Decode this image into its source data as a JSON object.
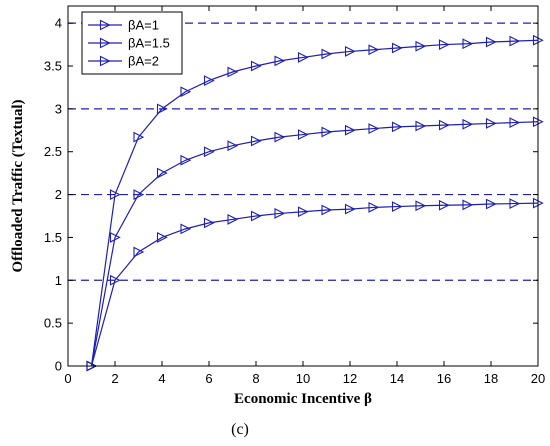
{
  "chart_data": {
    "type": "line",
    "xlabel": "Economic Incentive β",
    "ylabel": "Offloaded Traffic (Textual)",
    "caption": "(c)",
    "xlim": [
      0,
      20
    ],
    "ylim": [
      0,
      4.2
    ],
    "xticks": [
      0,
      2,
      4,
      6,
      8,
      10,
      12,
      14,
      16,
      18,
      20
    ],
    "yticks": [
      0,
      0.5,
      1,
      1.5,
      2,
      2.5,
      3,
      3.5,
      4
    ],
    "ytick_labels": [
      "0",
      "0.5",
      "1",
      "1.5",
      "2",
      "2.5",
      "3",
      "3.5",
      "4"
    ],
    "grid": false,
    "legend_position": "top-left",
    "marker": "right-triangle",
    "line_color": "#1f1fb4",
    "asymptote_color": "#1f1fb4",
    "asymptotes": [
      1,
      2,
      3,
      4
    ],
    "x": [
      1,
      2,
      3,
      4,
      5,
      6,
      7,
      8,
      9,
      10,
      11,
      12,
      13,
      14,
      15,
      16,
      17,
      18,
      19,
      20
    ],
    "series": [
      {
        "name": "βA=1",
        "values": [
          0,
          1,
          1.33,
          1.5,
          1.6,
          1.67,
          1.71,
          1.75,
          1.78,
          1.8,
          1.82,
          1.83,
          1.85,
          1.86,
          1.87,
          1.875,
          1.88,
          1.89,
          1.895,
          1.9
        ]
      },
      {
        "name": "βA=1.5",
        "values": [
          0,
          1.5,
          2,
          2.25,
          2.4,
          2.5,
          2.57,
          2.625,
          2.67,
          2.7,
          2.73,
          2.75,
          2.77,
          2.79,
          2.8,
          2.81,
          2.82,
          2.83,
          2.84,
          2.85
        ]
      },
      {
        "name": "βA=2",
        "values": [
          0,
          2,
          2.67,
          3,
          3.2,
          3.33,
          3.43,
          3.5,
          3.56,
          3.6,
          3.64,
          3.67,
          3.69,
          3.71,
          3.73,
          3.75,
          3.76,
          3.78,
          3.79,
          3.8
        ]
      }
    ]
  }
}
